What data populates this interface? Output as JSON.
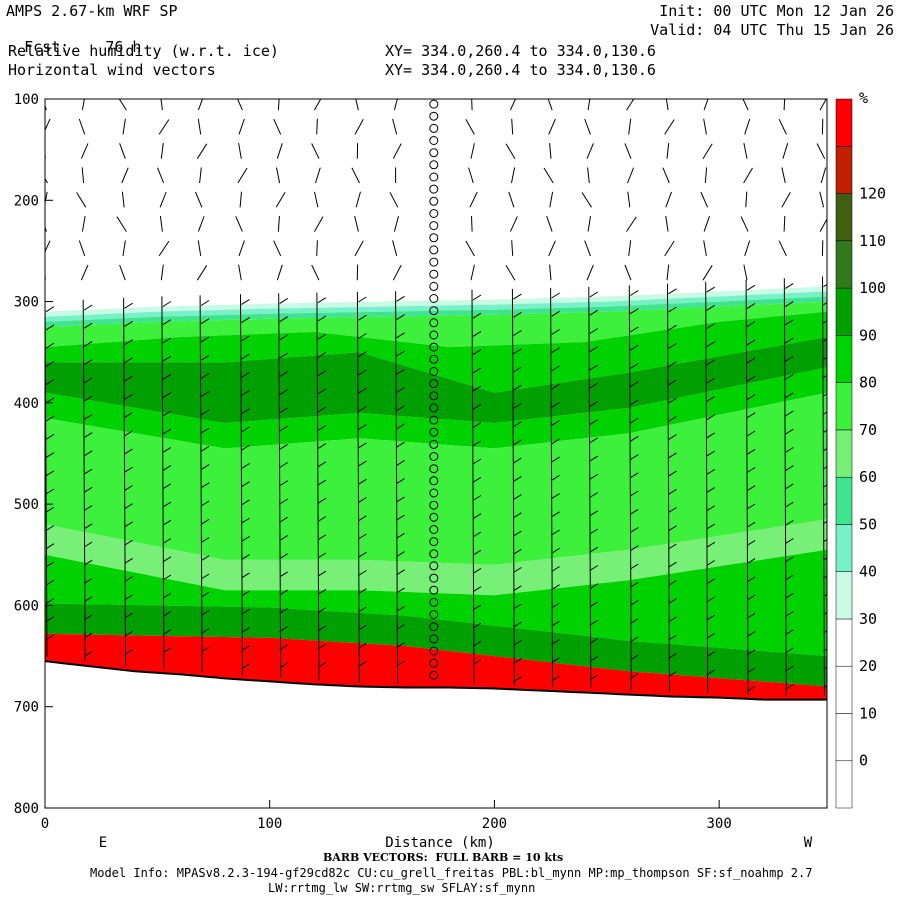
{
  "header": {
    "model": "AMPS 2.67-km WRF SP",
    "fcst_label": "Fcst:",
    "fcst_value": "76 h",
    "field1": "Relative humidity (w.r.t. ice)",
    "field2": "Horizontal wind vectors",
    "init": "Init: 00 UTC Mon 12 Jan 26",
    "valid": "Valid: 04 UTC Thu 15 Jan 26",
    "xy1": "XY= 334.0,260.4 to 334.0,130.6",
    "xy2": "XY= 334.0,260.4 to 334.0,130.6"
  },
  "footer": {
    "barb": "BARB VECTORS:  FULL BARB = 10 kts",
    "model_info": "Model Info: MPASv8.2.3-194-gf29cd82c CU:cu_grell_freitas PBL:bl_mynn MP:mp_thompson SF:sf_noahmp 2.7",
    "model_info2": "LW:rrtmg_lw SW:rrtmg_sw SFLAY:sf_mynn"
  },
  "chart_data": {
    "type": "heatmap",
    "xlabel": "Distance (km)",
    "ylabel": "",
    "xlim": [
      0,
      348
    ],
    "ylim": [
      800,
      100
    ],
    "x_ticks": [
      0,
      100,
      200,
      300
    ],
    "y_ticks": [
      100,
      200,
      300,
      400,
      500,
      600,
      700,
      800
    ],
    "left_end_label": "E",
    "right_end_label": "W",
    "colorbar": {
      "unit": "%",
      "levels": [
        -10,
        0,
        10,
        20,
        30,
        40,
        50,
        60,
        70,
        80,
        90,
        100,
        110,
        120,
        130
      ],
      "labels": [
        0,
        10,
        20,
        30,
        40,
        50,
        60,
        70,
        80,
        90,
        100,
        110,
        120
      ],
      "colors": [
        "#ffffff",
        "#ffffff",
        "#ffffff",
        "#ffffff",
        "#c8fae6",
        "#78f0c8",
        "#40e490",
        "#78f078",
        "#3cf03c",
        "#00d200",
        "#00a000",
        "#2f7a1a",
        "#406010",
        "#c02000",
        "#ff0000"
      ]
    },
    "terrain_pressure": [
      [
        0,
        655
      ],
      [
        20,
        660
      ],
      [
        40,
        665
      ],
      [
        60,
        668
      ],
      [
        80,
        672
      ],
      [
        100,
        675
      ],
      [
        120,
        678
      ],
      [
        140,
        680
      ],
      [
        160,
        681
      ],
      [
        180,
        681
      ],
      [
        200,
        682
      ],
      [
        220,
        684
      ],
      [
        240,
        686
      ],
      [
        260,
        688
      ],
      [
        280,
        690
      ],
      [
        300,
        691
      ],
      [
        320,
        693
      ],
      [
        348,
        693
      ]
    ],
    "rh_layers": [
      {
        "name": "cloud_top_rh30",
        "values": [
          [
            0,
            310
          ],
          [
            50,
            305
          ],
          [
            100,
            302
          ],
          [
            150,
            300
          ],
          [
            200,
            298
          ],
          [
            250,
            295
          ],
          [
            300,
            290
          ],
          [
            348,
            285
          ]
        ]
      },
      {
        "name": "rh90_top",
        "values": [
          [
            0,
            345
          ],
          [
            60,
            335
          ],
          [
            120,
            330
          ],
          [
            180,
            345
          ],
          [
            240,
            340
          ],
          [
            300,
            320
          ],
          [
            348,
            310
          ]
        ]
      },
      {
        "name": "rh100_band_top",
        "values": [
          [
            0,
            360
          ],
          [
            80,
            360
          ],
          [
            140,
            350
          ],
          [
            200,
            390
          ],
          [
            260,
            370
          ],
          [
            348,
            335
          ]
        ]
      },
      {
        "name": "rh100_band_bottom",
        "values": [
          [
            0,
            390
          ],
          [
            80,
            420
          ],
          [
            140,
            410
          ],
          [
            200,
            420
          ],
          [
            260,
            405
          ],
          [
            348,
            365
          ]
        ]
      },
      {
        "name": "rh70_bottom",
        "values": [
          [
            0,
            520
          ],
          [
            80,
            555
          ],
          [
            140,
            555
          ],
          [
            200,
            560
          ],
          [
            260,
            545
          ],
          [
            348,
            515
          ]
        ]
      },
      {
        "name": "rh110_top",
        "values": [
          [
            0,
            628
          ],
          [
            100,
            632
          ],
          [
            160,
            640
          ],
          [
            200,
            650
          ],
          [
            260,
            665
          ],
          [
            348,
            680
          ]
        ]
      }
    ],
    "wind_column_x": 173,
    "wind_columns": [
      0,
      17,
      35,
      52,
      69,
      87,
      104,
      121,
      139,
      156,
      173,
      190,
      208,
      225,
      242,
      260,
      277,
      294,
      312,
      329,
      346
    ]
  }
}
